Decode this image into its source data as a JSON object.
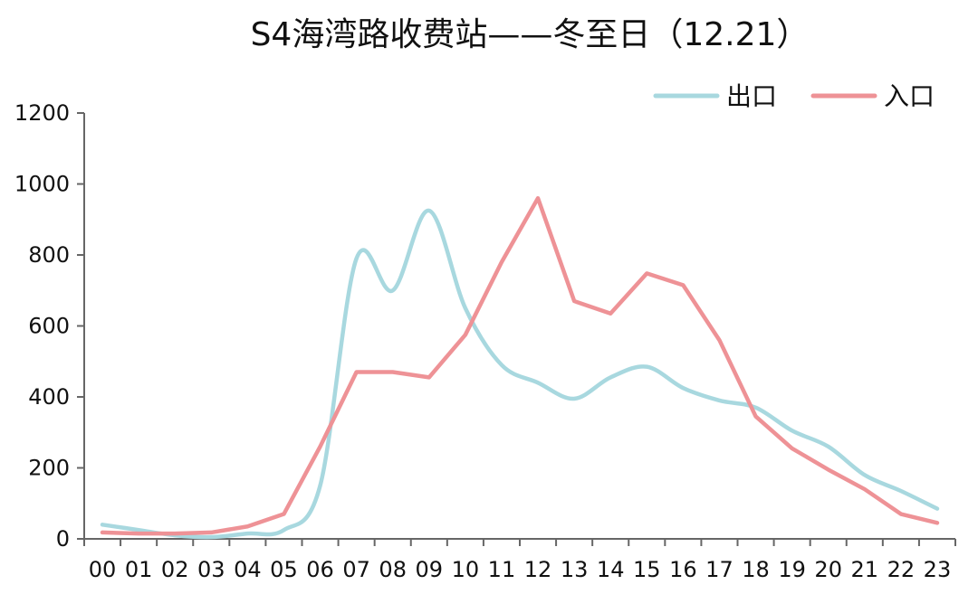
{
  "chart_data": {
    "type": "line",
    "title": "S4海湾路收费站——冬至日（12.21）",
    "xlabel": "",
    "ylabel": "",
    "categories": [
      "00",
      "01",
      "02",
      "03",
      "04",
      "05",
      "06",
      "07",
      "08",
      "09",
      "10",
      "11",
      "12",
      "13",
      "14",
      "15",
      "16",
      "17",
      "18",
      "19",
      "20",
      "21",
      "22",
      "23"
    ],
    "ylim": [
      0,
      1200
    ],
    "yticks": [
      0,
      200,
      400,
      600,
      800,
      1000,
      1200
    ],
    "grid": false,
    "legend_position": "top-right",
    "series": [
      {
        "name": "出口",
        "color": "#a8d8df",
        "smooth": true,
        "values": [
          40,
          25,
          10,
          5,
          15,
          25,
          150,
          790,
          700,
          925,
          650,
          490,
          440,
          395,
          455,
          485,
          425,
          390,
          370,
          305,
          260,
          180,
          135,
          85
        ]
      },
      {
        "name": "入口",
        "color": "#ee9296",
        "smooth": false,
        "values": [
          18,
          15,
          15,
          18,
          35,
          70,
          260,
          470,
          470,
          455,
          575,
          780,
          960,
          670,
          635,
          748,
          715,
          560,
          345,
          255,
          195,
          140,
          70,
          45
        ]
      }
    ]
  }
}
